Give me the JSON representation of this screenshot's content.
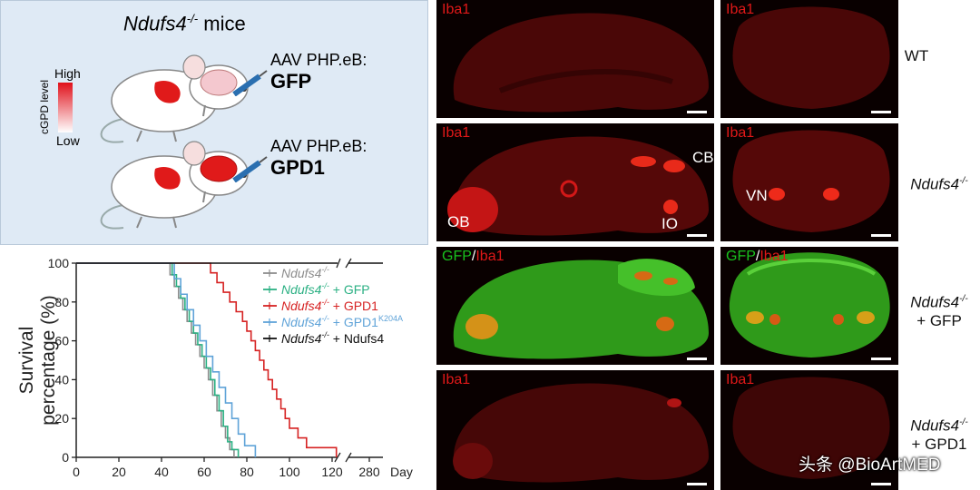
{
  "panel_a": {
    "title_gene": "Ndufs4",
    "title_sup": "-/-",
    "title_rest": " mice",
    "legend_high": "High",
    "legend_low": "Low",
    "legend_axis": "cGPD level",
    "vector1_line1": "AAV PHP.eB:",
    "vector1_line2": "GFP",
    "vector2_line1": "AAV PHP.eB:",
    "vector2_line2": "GPD1"
  },
  "chart_data": {
    "type": "line",
    "ylabel_line1": "Survival",
    "ylabel_line2": "percentage (%)",
    "xlabel": "Day",
    "xticks": [
      "0",
      "20",
      "40",
      "60",
      "80",
      "100",
      "120",
      "280"
    ],
    "yticks": [
      "0",
      "20",
      "40",
      "60",
      "80",
      "100"
    ],
    "ylim": [
      0,
      100
    ],
    "series": [
      {
        "name": "Ndufs4-/-",
        "legend_gene": "Ndufs4",
        "legend_sup": "-/-",
        "legend_suffix": "",
        "legend_sup2": "",
        "color": "#8c8c8c",
        "x": [
          0,
          42,
          44,
          46,
          48,
          50,
          52,
          54,
          56,
          58,
          60,
          62,
          64,
          66,
          68,
          70,
          72,
          74
        ],
        "y": [
          100,
          100,
          94,
          88,
          82,
          76,
          70,
          64,
          58,
          52,
          46,
          40,
          32,
          24,
          16,
          10,
          4,
          0
        ]
      },
      {
        "name": "Ndufs4-/- + GFP",
        "legend_gene": "Ndufs4",
        "legend_sup": "-/-",
        "legend_suffix": " + GFP",
        "legend_sup2": "",
        "color": "#2bb083",
        "x": [
          0,
          43,
          45,
          47,
          49,
          51,
          53,
          55,
          57,
          59,
          61,
          63,
          65,
          67,
          69,
          71,
          73,
          76
        ],
        "y": [
          100,
          100,
          94,
          88,
          82,
          76,
          70,
          64,
          58,
          52,
          46,
          40,
          32,
          24,
          16,
          8,
          4,
          0
        ]
      },
      {
        "name": "Ndufs4-/- + GPD1",
        "legend_gene": "Ndufs4",
        "legend_sup": "-/-",
        "legend_suffix": " + GPD1",
        "legend_sup2": "",
        "color": "#d62222",
        "x": [
          0,
          60,
          63,
          66,
          69,
          72,
          75,
          78,
          80,
          82,
          84,
          86,
          88,
          90,
          92,
          94,
          96,
          98,
          100,
          104,
          108,
          114,
          122
        ],
        "y": [
          100,
          100,
          95,
          90,
          85,
          80,
          75,
          70,
          65,
          60,
          55,
          50,
          45,
          40,
          35,
          30,
          25,
          20,
          15,
          10,
          5,
          5,
          0
        ]
      },
      {
        "name": "Ndufs4-/- + GPD1K204A",
        "legend_gene": "Ndufs4",
        "legend_sup": "-/-",
        "legend_suffix": " + GPD1",
        "legend_sup2": "K204A",
        "color": "#5fa3d8",
        "x": [
          0,
          43,
          46,
          49,
          52,
          55,
          58,
          61,
          64,
          67,
          70,
          73,
          76,
          79,
          84
        ],
        "y": [
          100,
          100,
          92,
          84,
          76,
          68,
          60,
          52,
          44,
          36,
          28,
          20,
          12,
          6,
          0
        ]
      },
      {
        "name": "Ndufs4-/- + Ndufs4",
        "legend_gene": "Ndufs4",
        "legend_sup": "-/-",
        "legend_suffix": " + Ndufs4",
        "legend_sup2": "",
        "color": "#111111",
        "x": [
          0,
          280
        ],
        "y": [
          100,
          100
        ]
      }
    ]
  },
  "panel_c": {
    "label_iba1": "Iba1",
    "label_gfp": "GFP",
    "label_slash": "/",
    "label_ob": "OB",
    "label_io": "IO",
    "label_cb": "CB",
    "label_vn": "VN",
    "row1": "WT",
    "row2_gene": "Ndufs4",
    "row2_sup": "-/-",
    "row3_gene": "Ndufs4",
    "row3_sup": "-/-",
    "row3_line2": "+ GFP",
    "row4_gene": "Ndufs4",
    "row4_sup": "-/-",
    "row4_line2": "+ GPD1",
    "watermark": "头条 @BioArtMED"
  }
}
